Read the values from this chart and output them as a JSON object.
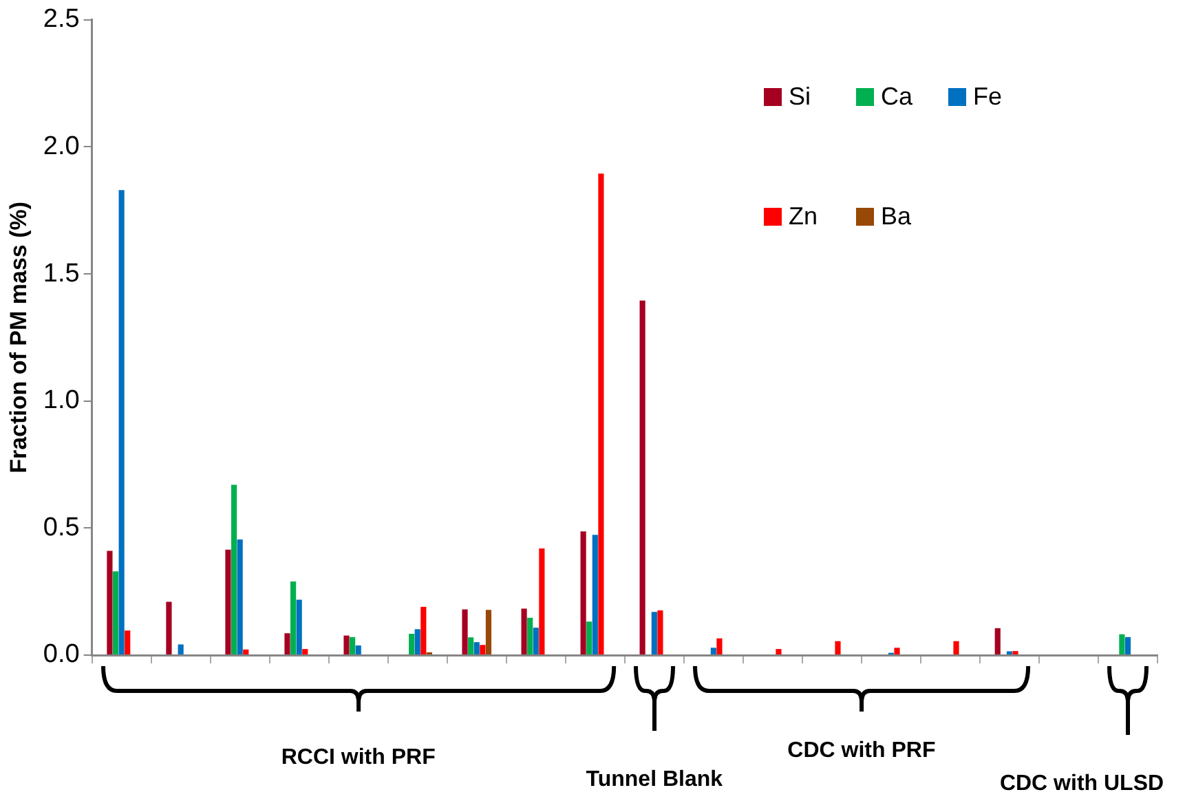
{
  "chart_data": {
    "type": "bar",
    "ylabel": "Fraction of PM mass (%)",
    "categories": [
      null,
      null,
      null,
      null,
      null,
      null,
      null,
      null,
      null,
      null,
      null,
      null,
      null,
      null,
      null,
      null,
      null,
      null
    ],
    "series": [
      {
        "name": "Si",
        "color": "#a50021",
        "values": [
          0.41,
          0.21,
          0.415,
          0.086,
          0.077,
          null,
          0.18,
          0.183,
          0.487,
          1.395,
          null,
          null,
          null,
          null,
          null,
          0.106,
          null,
          null
        ]
      },
      {
        "name": "Ca",
        "color": "#00b050",
        "values": [
          0.33,
          null,
          0.67,
          0.29,
          0.071,
          0.084,
          0.07,
          0.147,
          0.132,
          null,
          null,
          null,
          null,
          null,
          null,
          null,
          null,
          0.082
        ]
      },
      {
        "name": "Fe",
        "color": "#0070c0",
        "values": [
          1.83,
          0.042,
          0.455,
          0.218,
          0.038,
          0.102,
          0.051,
          0.108,
          0.473,
          0.17,
          0.029,
          null,
          null,
          0.009,
          null,
          0.015,
          null,
          0.071
        ]
      },
      {
        "name": "Zn",
        "color": "#ff0000",
        "values": [
          0.097,
          null,
          0.022,
          0.024,
          null,
          0.19,
          0.04,
          0.42,
          1.895,
          0.176,
          0.066,
          0.024,
          0.055,
          0.029,
          0.055,
          0.016,
          null,
          null
        ]
      },
      {
        "name": "Ba",
        "color": "#984807",
        "values": [
          null,
          null,
          null,
          null,
          null,
          0.011,
          0.178,
          null,
          null,
          null,
          null,
          null,
          null,
          null,
          null,
          null,
          null,
          null
        ]
      }
    ],
    "ylim": [
      0,
      2.5
    ],
    "yticks": [
      {
        "value": 0,
        "label": "0.0"
      },
      {
        "value": 0.5,
        "label": "0.5"
      },
      {
        "value": 1,
        "label": "1.0"
      },
      {
        "value": 1.5,
        "label": "1.5"
      },
      {
        "value": 2,
        "label": "2.0"
      },
      {
        "value": 2.5,
        "label": "2.5"
      }
    ],
    "grid": false,
    "legend": "top right",
    "tick_labels": "y",
    "annotations": [
      "RCCI with PRF",
      "Tunnel Blank",
      "CDC with PRF",
      "CDC with ULSD"
    ]
  }
}
